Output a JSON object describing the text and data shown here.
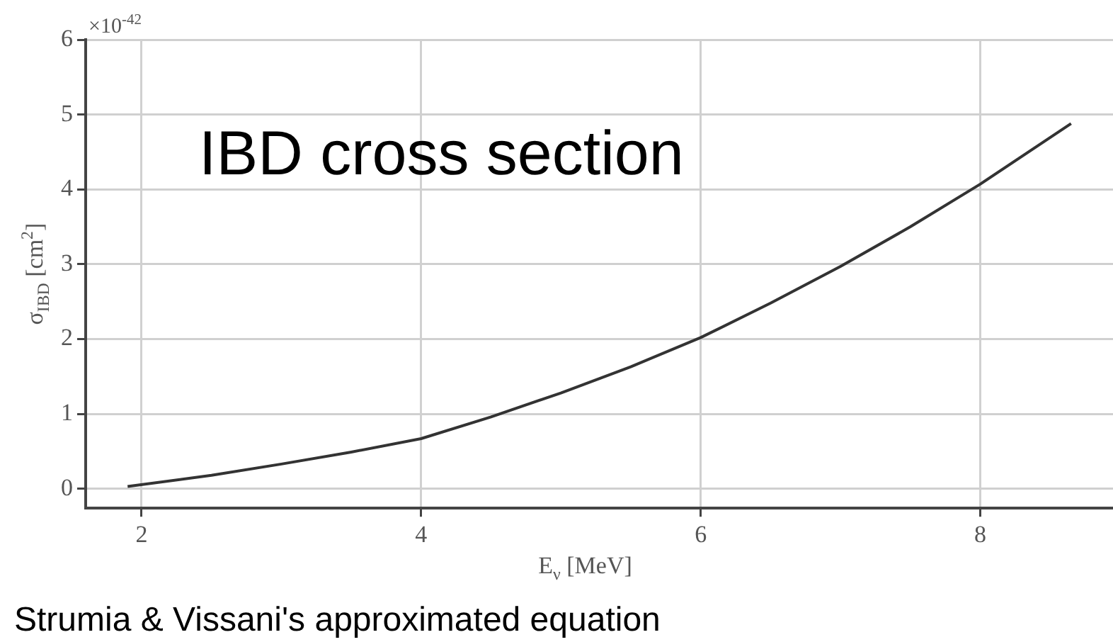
{
  "chart_data": {
    "type": "line",
    "xlabel": "E$_{ν}$ [MeV]",
    "ylabel": "σ$_{IBD}$ [cm$^{2}$]",
    "annotations": [
      "IBD cross section",
      "×10$^{-42}$",
      "Strumia & Vissani's approximated equation"
    ],
    "series": [
      {
        "color": "#333333",
        "x": [
          1.9,
          2.5,
          3,
          3.5,
          4,
          4.5,
          5,
          5.5,
          6,
          6.5,
          7,
          7.5,
          8,
          8.65
        ],
        "values": [
          0.03,
          0.18,
          0.33,
          0.49,
          0.67,
          0.96,
          1.28,
          1.63,
          2.02,
          2.48,
          2.97,
          3.5,
          4.07,
          4.88
        ]
      }
    ],
    "xlim": [
      1.6,
      8.95
    ],
    "xticks": [
      2,
      4,
      6,
      8
    ],
    "ylim": [
      -0.26,
      6
    ],
    "yticks": [
      0,
      1,
      2,
      3,
      4,
      5,
      6
    ],
    "grid": true,
    "legend": false,
    "marker": "none",
    "line_style": "solid"
  }
}
